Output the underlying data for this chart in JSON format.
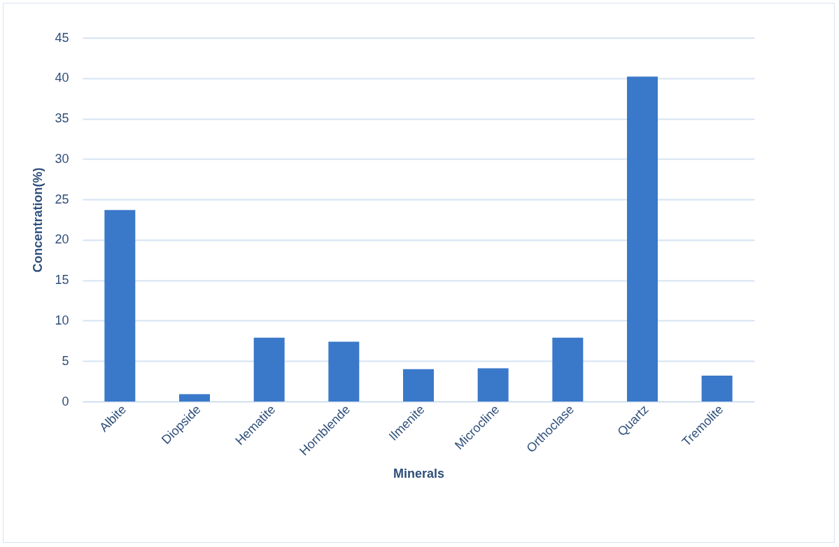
{
  "chart_data": {
    "type": "bar",
    "xlabel": "Minerals",
    "ylabel": "Concentration(%)",
    "categories": [
      "Albite",
      "Diopside",
      "Hematite",
      "Hornblende",
      "Ilmenite",
      "Microcline",
      "Orthoclase",
      "Quartz",
      "Tremolite"
    ],
    "values": [
      23.7,
      0.9,
      7.9,
      7.4,
      4.0,
      4.1,
      7.9,
      40.2,
      3.2
    ],
    "color": "#3a78c9",
    "ylim": [
      0,
      45
    ],
    "yticks": [
      0,
      5,
      10,
      15,
      20,
      25,
      30,
      35,
      40,
      45
    ],
    "grid": "y"
  }
}
